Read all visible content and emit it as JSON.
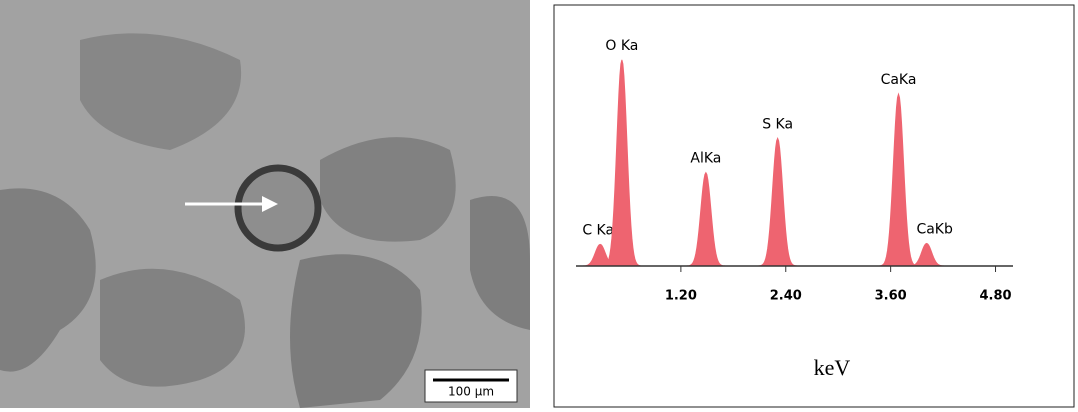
{
  "image": {
    "scale_bar": "100 µm"
  },
  "chart_data": {
    "type": "spectrum",
    "x_label": "keV",
    "categories": [
      "C Ka",
      "O Ka",
      "AlKa",
      "S Ka",
      "CaKa",
      "CaKb"
    ],
    "x": [
      0.277,
      0.525,
      1.486,
      2.307,
      3.69,
      4.012
    ],
    "values": [
      22,
      210,
      95,
      130,
      175,
      23
    ],
    "color": "#ee6470",
    "xlim": [
      0,
      5
    ],
    "xticks": [
      {
        "value": 1.2,
        "label": "1.20"
      },
      {
        "value": 2.4,
        "label": "2.40"
      },
      {
        "value": 3.6,
        "label": "3.60"
      },
      {
        "value": 4.8,
        "label": "4.80"
      }
    ],
    "ylim": [
      0,
      220
    ]
  }
}
